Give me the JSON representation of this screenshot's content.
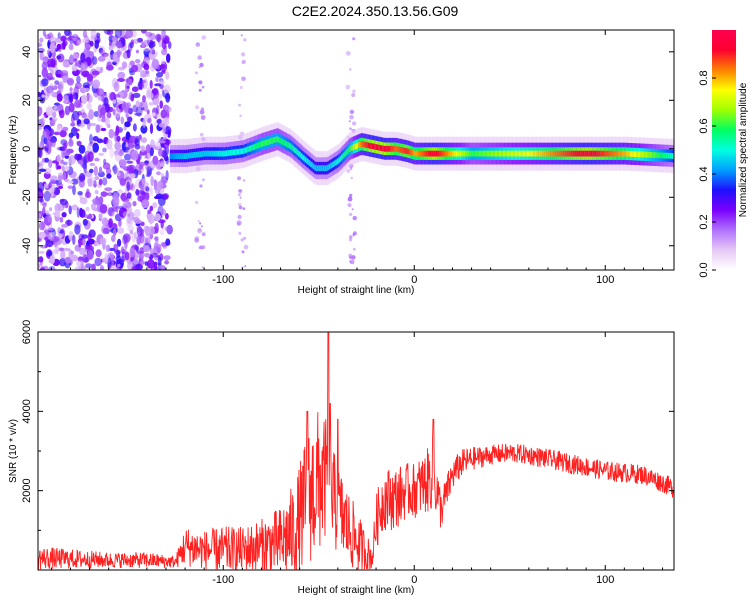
{
  "title": "C2E2.2024.350.13.56.G09",
  "colors": {
    "snr_line": "#ff2020",
    "colormap": [
      "#ffffff",
      "#e6c8f5",
      "#b070ff",
      "#7a00ff",
      "#1e10ff",
      "#00a0ff",
      "#00ffe0",
      "#00ff60",
      "#a0ff00",
      "#ffff00",
      "#ff8000",
      "#ff0030",
      "#ff0050"
    ]
  },
  "chart_data": [
    {
      "type": "heatmap",
      "title": "C2E2.2024.350.13.56.G09",
      "xlabel": "Height of straight line (km)",
      "ylabel": "Frequency (Hz)",
      "xlim": [
        -197,
        136
      ],
      "ylim": [
        -50,
        49
      ],
      "xticks": [
        -100,
        0,
        100
      ],
      "xtick_labels": [
        "-100",
        "0",
        "100"
      ],
      "yticks": [
        -40,
        -20,
        0,
        20,
        40
      ],
      "ytick_labels": [
        "-40",
        "-20",
        "0",
        "20",
        "40"
      ],
      "ridge": {
        "description": "dominant frequency track (normalized amplitude shown by colormap)",
        "x": [
          -128,
          -120,
          -110,
          -100,
          -90,
          -80,
          -72,
          -65,
          -58,
          -52,
          -46,
          -40,
          -34,
          -28,
          -22,
          -16,
          -10,
          -4,
          0,
          10,
          30,
          60,
          90,
          110,
          136
        ],
        "y": [
          -3,
          -3,
          -2,
          -2,
          -1,
          2,
          4,
          1,
          -4,
          -8,
          -8,
          -5,
          0,
          2,
          1,
          0,
          0,
          -1,
          -2,
          -2,
          -2,
          -2,
          -2,
          -2,
          -3
        ],
        "amplitude": [
          0.4,
          0.45,
          0.45,
          0.5,
          0.5,
          0.6,
          0.6,
          0.55,
          0.5,
          0.45,
          0.45,
          0.5,
          0.6,
          0.85,
          0.95,
          0.95,
          0.85,
          0.9,
          0.8,
          0.95,
          0.6,
          0.75,
          0.95,
          0.8,
          0.5
        ]
      },
      "noise_region": {
        "x_range": [
          -197,
          -128
        ],
        "y_range": [
          -50,
          49
        ]
      },
      "colorbar": {
        "label": "Normalized spectral amplitude",
        "ticks": [
          0.0,
          0.2,
          0.4,
          0.6,
          0.8
        ],
        "tick_labels": [
          "0.0",
          "0.2",
          "0.4",
          "0.6",
          "0.8"
        ],
        "range": [
          0,
          1
        ]
      }
    },
    {
      "type": "line",
      "xlabel": "Height of straight line (km)",
      "ylabel": "SNR (10 * v/v)",
      "xlim": [
        -197,
        136
      ],
      "ylim": [
        0,
        6000
      ],
      "xticks": [
        -100,
        0,
        100
      ],
      "xtick_labels": [
        "-100",
        "0",
        "100"
      ],
      "yticks": [
        2000,
        4000,
        6000
      ],
      "ytick_labels": [
        "2000",
        "4000",
        "6000"
      ],
      "series": [
        {
          "x": [
            -197,
            -180,
            -160,
            -140,
            -125,
            -120,
            -110,
            -100,
            -90,
            -80,
            -70,
            -62,
            -56,
            -50,
            -46,
            -44,
            -40,
            -30,
            -22,
            -20,
            -16,
            -10,
            -4,
            0,
            6,
            10,
            14,
            20,
            25,
            30,
            40,
            50,
            60,
            70,
            80,
            90,
            100,
            110,
            120,
            130,
            136
          ],
          "y": [
            300,
            280,
            250,
            250,
            200,
            600,
            500,
            500,
            500,
            600,
            700,
            1000,
            1800,
            2200,
            2300,
            2000,
            1500,
            700,
            300,
            1200,
            1800,
            1800,
            2000,
            2000,
            2200,
            2400,
            1500,
            2400,
            2700,
            2800,
            2900,
            2950,
            2900,
            2800,
            2700,
            2600,
            2500,
            2450,
            2400,
            2200,
            2050
          ],
          "noise": [
            300,
            250,
            200,
            200,
            150,
            500,
            500,
            600,
            600,
            700,
            900,
            1300,
            1700,
            1900,
            1500,
            1300,
            1200,
            800,
            300,
            700,
            800,
            800,
            700,
            700,
            800,
            900,
            500,
            400,
            350,
            300,
            250,
            250,
            250,
            250,
            250,
            250,
            250,
            250,
            250,
            250,
            250
          ],
          "peaks": [
            [
              -56,
              4000
            ],
            [
              -44,
              4200
            ],
            [
              -45,
              6000
            ],
            [
              -40,
              3800
            ],
            [
              10,
              3800
            ]
          ]
        }
      ]
    }
  ]
}
